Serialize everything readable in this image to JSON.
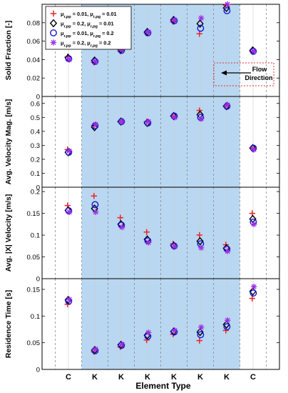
{
  "figure": {
    "xlabel": "Element Type",
    "categories": [
      "C",
      "K",
      "K",
      "K",
      "K",
      "K",
      "K",
      "C"
    ],
    "shaded_range": [
      2,
      7
    ],
    "shade_color": "#b9d7f0",
    "legend_position": "top-left",
    "annotation": {
      "text_line1": "Flow",
      "text_line2": "Direction",
      "arrow": "left",
      "box_color": "#e03030"
    }
  },
  "series_styles": [
    {
      "marker": "plus",
      "color": "#e8262b",
      "legend_label": "μ_r,pp = 0.01, μ_r,pg = 0.01"
    },
    {
      "marker": "diamond",
      "color": "#000000",
      "legend_label": "μ_r,pp = 0.2, μ_r,pg = 0.01"
    },
    {
      "marker": "circle",
      "color": "#1414d8",
      "legend_label": "μ_r,pp = 0.01, μ_r,pg = 0.2"
    },
    {
      "marker": "asterisk",
      "color": "#9b2fe8",
      "legend_label": "μ_r,pp = 0.2, μ_r,pg = 0.2"
    }
  ],
  "chart_data": [
    {
      "type": "scatter",
      "ylabel": "Solid Fraction [-]",
      "ylim": [
        0,
        0.1
      ],
      "yticks": [
        0,
        0.02,
        0.04,
        0.06,
        0.08
      ],
      "ytick_labels": [
        "0",
        "0.02",
        "0.04",
        "0.06",
        "0.08"
      ],
      "categories": [
        "C",
        "K",
        "K",
        "K",
        "K",
        "K",
        "K",
        "C"
      ],
      "series": [
        {
          "values": [
            0.043,
            0.037,
            0.049,
            0.069,
            0.081,
            0.068,
            0.099,
            0.049
          ]
        },
        {
          "values": [
            0.042,
            0.039,
            0.051,
            0.07,
            0.083,
            0.079,
            0.096,
            0.05
          ]
        },
        {
          "values": [
            0.041,
            0.038,
            0.05,
            0.069,
            0.082,
            0.074,
            0.093,
            0.049
          ]
        },
        {
          "values": [
            0.04,
            0.038,
            0.051,
            0.07,
            0.083,
            0.085,
            0.1,
            0.049
          ]
        }
      ]
    },
    {
      "type": "scatter",
      "ylabel": "Avg. Velocity Mag. [m/s]",
      "ylim": [
        0,
        0.65
      ],
      "yticks": [
        0,
        0.1,
        0.2,
        0.3,
        0.4,
        0.5,
        0.6
      ],
      "ytick_labels": [
        "0",
        "0.1",
        "0.2",
        "0.3",
        "0.4",
        "0.5",
        "0.6"
      ],
      "categories": [
        "C",
        "K",
        "K",
        "K",
        "K",
        "K",
        "K",
        "C"
      ],
      "series": [
        {
          "values": [
            0.27,
            0.44,
            0.47,
            0.47,
            0.51,
            0.55,
            0.58,
            0.28
          ]
        },
        {
          "values": [
            0.25,
            0.43,
            0.47,
            0.46,
            0.51,
            0.52,
            0.58,
            0.28
          ]
        },
        {
          "values": [
            0.25,
            0.44,
            0.47,
            0.46,
            0.51,
            0.5,
            0.58,
            0.28
          ]
        },
        {
          "values": [
            0.26,
            0.45,
            0.47,
            0.47,
            0.5,
            0.49,
            0.59,
            0.27
          ]
        }
      ]
    },
    {
      "type": "scatter",
      "ylabel": "Avg. |X| Velocity [m/s]",
      "ylim": [
        0,
        0.21
      ],
      "yticks": [
        0,
        0.05,
        0.1,
        0.15,
        0.2
      ],
      "ytick_labels": [
        "0",
        "0.05",
        "0.1",
        "0.15",
        "0.2"
      ],
      "categories": [
        "C",
        "K",
        "K",
        "K",
        "K",
        "K",
        "K",
        "C"
      ],
      "series": [
        {
          "values": [
            0.168,
            0.19,
            0.14,
            0.107,
            0.08,
            0.1,
            0.078,
            0.15
          ]
        },
        {
          "values": [
            0.157,
            0.161,
            0.125,
            0.09,
            0.076,
            0.086,
            0.07,
            0.137
          ]
        },
        {
          "values": [
            0.156,
            0.17,
            0.123,
            0.087,
            0.075,
            0.08,
            0.068,
            0.13
          ]
        },
        {
          "values": [
            0.153,
            0.153,
            0.118,
            0.083,
            0.074,
            0.071,
            0.063,
            0.125
          ]
        }
      ]
    },
    {
      "type": "scatter",
      "ylabel": "Residence Time [s]",
      "ylim": [
        0,
        0.17
      ],
      "yticks": [
        0,
        0.05,
        0.1,
        0.15
      ],
      "ytick_labels": [
        "0",
        "0.05",
        "0.1",
        "0.15"
      ],
      "categories": [
        "C",
        "K",
        "K",
        "K",
        "K",
        "K",
        "K",
        "C"
      ],
      "series": [
        {
          "values": [
            0.122,
            0.033,
            0.042,
            0.055,
            0.066,
            0.054,
            0.073,
            0.133
          ]
        },
        {
          "values": [
            0.13,
            0.036,
            0.046,
            0.064,
            0.071,
            0.07,
            0.084,
            0.146
          ]
        },
        {
          "values": [
            0.128,
            0.035,
            0.045,
            0.062,
            0.07,
            0.065,
            0.08,
            0.143
          ]
        },
        {
          "values": [
            0.131,
            0.038,
            0.047,
            0.069,
            0.073,
            0.079,
            0.092,
            0.155
          ]
        }
      ]
    }
  ]
}
